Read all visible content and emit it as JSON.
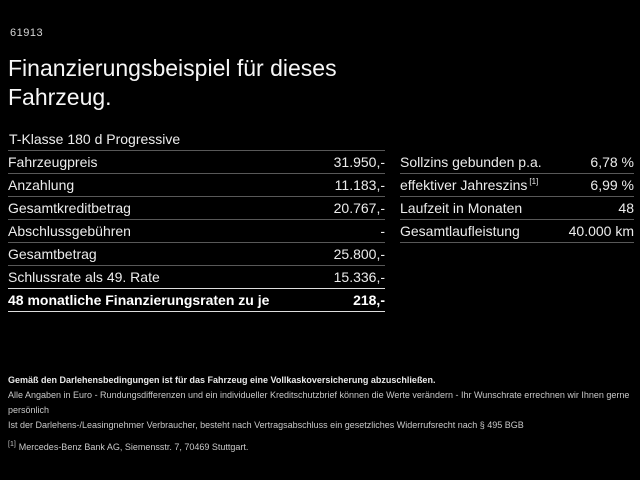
{
  "page": {
    "id_code": "61913",
    "title_line1": "Finanzierungsbeispiel für dieses",
    "title_line2": "Fahrzeug.",
    "subtitle": "T-Klasse 180 d Progressive"
  },
  "finance_table": {
    "rows": [
      {
        "label": "Fahrzeugpreis",
        "value": "31.950,-"
      },
      {
        "label": "Anzahlung",
        "value": "11.183,-"
      },
      {
        "label": "Gesamtkreditbetrag",
        "value": "20.767,-"
      },
      {
        "label": "Abschlussgebühren",
        "value": "-"
      },
      {
        "label": "Gesamtbetrag",
        "value": "25.800,-"
      },
      {
        "label": "Schlussrate als 49. Rate",
        "value": "15.336,-"
      }
    ],
    "highlight_row": {
      "label": "48 monatliche Finanzierungsraten zu je",
      "value": "218,-"
    }
  },
  "conditions_table": {
    "rows": [
      {
        "label": "Sollzins gebunden p.a.",
        "sup": "",
        "value": "6,78 %"
      },
      {
        "label": "effektiver Jahreszins",
        "sup": "[1]",
        "value": "6,99 %"
      },
      {
        "label": "Laufzeit in Monaten",
        "sup": "",
        "value": "48"
      },
      {
        "label": "Gesamtlaufleistung",
        "sup": "",
        "value": "40.000 km"
      }
    ]
  },
  "footer": {
    "line_bold": "Gemäß den Darlehensbedingungen ist für das Fahrzeug eine Vollkaskoversicherung abzuschließen.",
    "line2": "Alle Angaben in Euro - Rundungsdifferenzen und ein individueller Kreditschutzbrief können die Werte verändern - Ihr Wunschrate errechnen wir Ihnen gerne persönlich",
    "line3": "Ist der Darlehens-/Leasingnehmer Verbraucher, besteht nach Vertragsabschluss ein gesetzliches Widerrufsrecht nach § 495 BGB",
    "footnote_marker": "[1]",
    "footnote_text": "Mercedes-Benz Bank AG, Siemensstr. 7, 70469 Stuttgart."
  },
  "colors": {
    "background": "#000000",
    "text": "#ececec",
    "separator": "#585858",
    "highlight_separator": "#dedede"
  }
}
